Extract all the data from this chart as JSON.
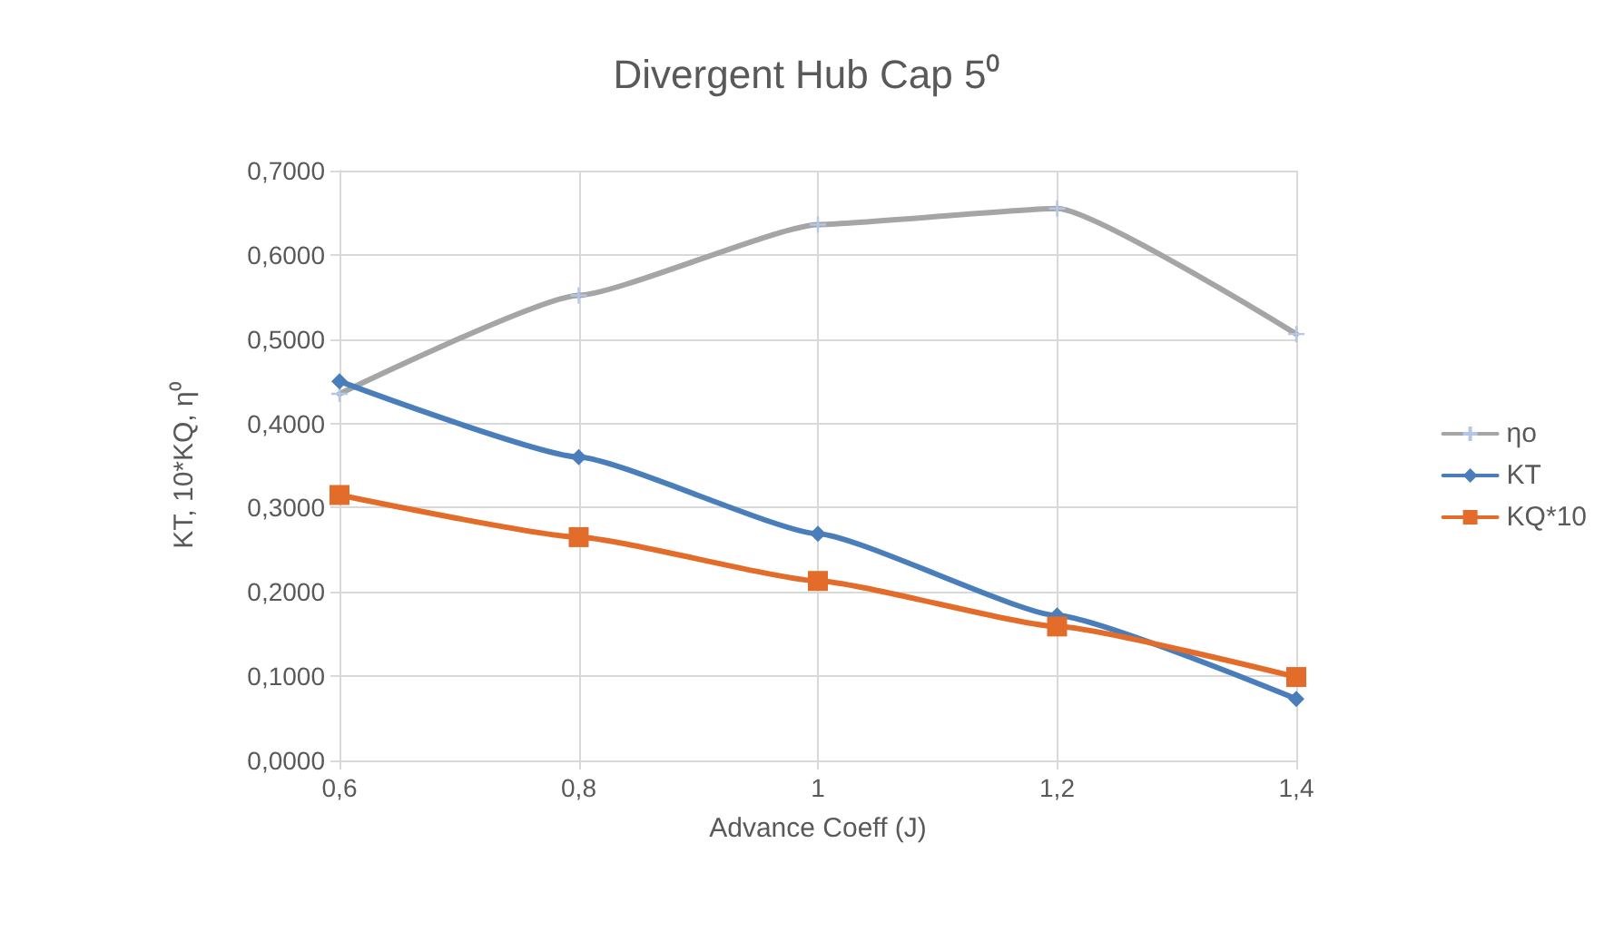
{
  "chart_data": {
    "type": "line",
    "title": "Divergent Hub Cap 5⁰",
    "xlabel": "Advance Coeff (J)",
    "ylabel": "KT, 10*KQ, η⁰",
    "x": [
      0.6,
      0.8,
      1.0,
      1.2,
      1.4
    ],
    "series": [
      {
        "name": "ηo",
        "color": "#a5a5a5",
        "marker": "cross",
        "values": [
          0.435,
          0.552,
          0.636,
          0.655,
          0.506
        ]
      },
      {
        "name": "KT",
        "color": "#4a7ebb",
        "marker": "diamond",
        "values": [
          0.45,
          0.36,
          0.269,
          0.172,
          0.073
        ]
      },
      {
        "name": "KQ*10",
        "color": "#e46c2a",
        "marker": "square",
        "values": [
          0.315,
          0.265,
          0.213,
          0.159,
          0.099
        ]
      }
    ],
    "xlim": [
      0.6,
      1.4
    ],
    "xticks": [
      {
        "value": 0.6,
        "label": "0,6"
      },
      {
        "value": 0.8,
        "label": "0,8"
      },
      {
        "value": 1.0,
        "label": "1"
      },
      {
        "value": 1.2,
        "label": "1,2"
      },
      {
        "value": 1.4,
        "label": "1,4"
      }
    ],
    "ylim": [
      0,
      0.7
    ],
    "yticks": [
      {
        "value": 0,
        "label": "0,0000"
      },
      {
        "value": 0.1,
        "label": "0,1000"
      },
      {
        "value": 0.2,
        "label": "0,2000"
      },
      {
        "value": 0.3,
        "label": "0,3000"
      },
      {
        "value": 0.4,
        "label": "0,4000"
      },
      {
        "value": 0.5,
        "label": "0,5000"
      },
      {
        "value": 0.6,
        "label": "0,6000"
      },
      {
        "value": 0.7,
        "label": "0,7000"
      }
    ],
    "grid": true,
    "legend": "right",
    "line_style": "solid"
  }
}
